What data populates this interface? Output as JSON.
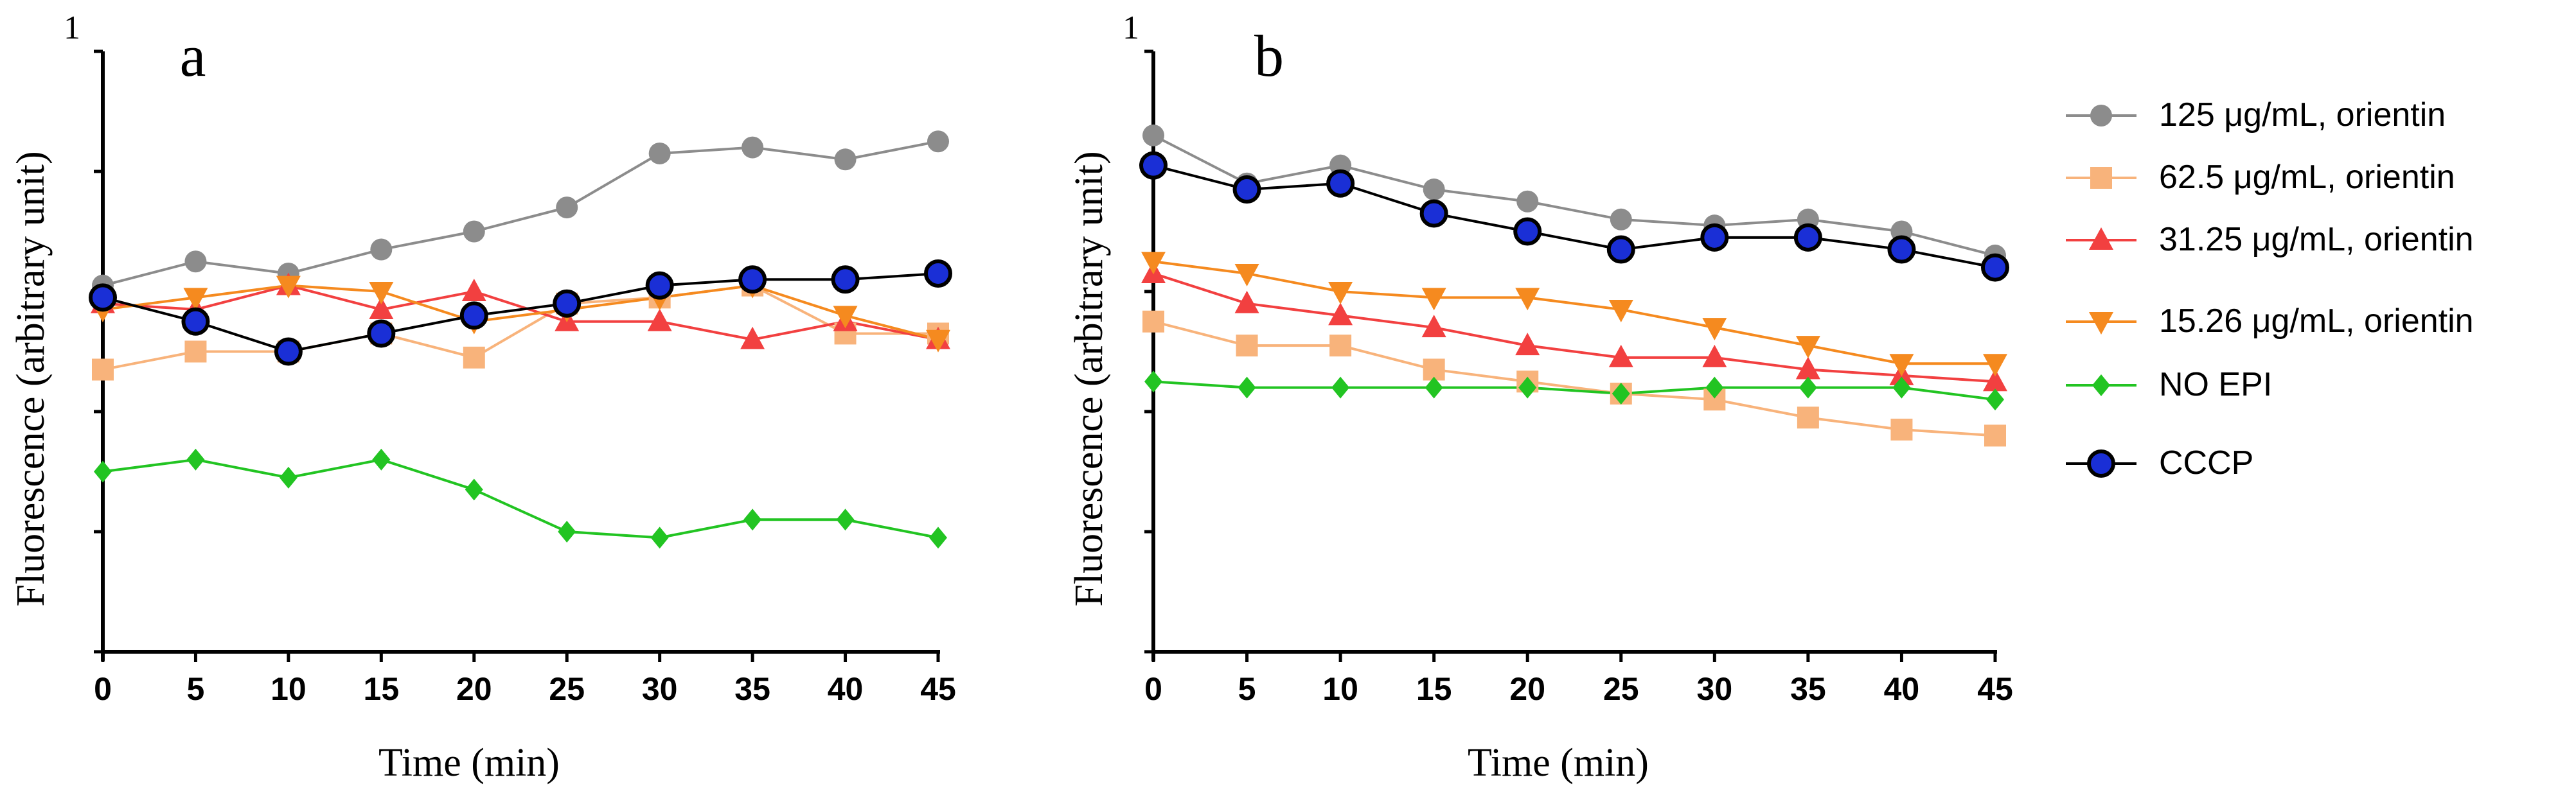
{
  "chart_data": [
    {
      "type": "line",
      "panel_label": "a",
      "xlabel": "Time (min)",
      "ylabel": "Fluorescence (arbitrary unit)",
      "ytop_label": "1",
      "x": [
        0,
        5,
        10,
        15,
        20,
        25,
        30,
        35,
        40,
        45
      ],
      "xlim": [
        0,
        45
      ],
      "ylim": [
        0,
        1
      ],
      "series": [
        {
          "name": "125 μg/mL, orientin",
          "color": "#8c8c8c",
          "marker": "circle",
          "values": [
            0.61,
            0.65,
            0.63,
            0.67,
            0.7,
            0.74,
            0.83,
            0.84,
            0.82,
            0.85
          ]
        },
        {
          "name": "62.5 μg/mL, orientin",
          "color": "#f8b37b",
          "marker": "square",
          "values": [
            0.47,
            0.5,
            0.5,
            0.53,
            0.49,
            0.58,
            0.59,
            0.61,
            0.53,
            0.53
          ]
        },
        {
          "name": "31.25 μg/mL, orientin",
          "color": "#f24040",
          "marker": "triangle-up",
          "values": [
            0.58,
            0.57,
            0.61,
            0.57,
            0.6,
            0.55,
            0.55,
            0.52,
            0.55,
            0.52
          ]
        },
        {
          "name": "15.26 μg/mL, orientin",
          "color": "#f58a1f",
          "marker": "triangle-down",
          "values": [
            0.57,
            0.59,
            0.61,
            0.6,
            0.55,
            0.57,
            0.59,
            0.61,
            0.56,
            0.52
          ]
        },
        {
          "name": "NO EPI",
          "color": "#22c422",
          "marker": "diamond",
          "values": [
            0.3,
            0.32,
            0.29,
            0.32,
            0.27,
            0.2,
            0.19,
            0.22,
            0.22,
            0.19
          ]
        },
        {
          "name": "CCCP",
          "color": "#1a2fd6",
          "marker": "circle-ring",
          "values": [
            0.59,
            0.55,
            0.5,
            0.53,
            0.56,
            0.58,
            0.61,
            0.62,
            0.62,
            0.63
          ]
        }
      ]
    },
    {
      "type": "line",
      "panel_label": "b",
      "xlabel": "Time (min)",
      "ylabel": "Fluorescence (arbitrary unit)",
      "ytop_label": "1",
      "x": [
        0,
        5,
        10,
        15,
        20,
        25,
        30,
        35,
        40,
        45
      ],
      "xlim": [
        0,
        45
      ],
      "ylim": [
        0,
        1
      ],
      "series": [
        {
          "name": "125 μg/mL, orientin",
          "color": "#8c8c8c",
          "marker": "circle",
          "values": [
            0.86,
            0.78,
            0.81,
            0.77,
            0.75,
            0.72,
            0.71,
            0.72,
            0.7,
            0.66
          ]
        },
        {
          "name": "62.5 μg/mL, orientin",
          "color": "#f8b37b",
          "marker": "square",
          "values": [
            0.55,
            0.51,
            0.51,
            0.47,
            0.45,
            0.43,
            0.42,
            0.39,
            0.37,
            0.36
          ]
        },
        {
          "name": "31.25 μg/mL, orientin",
          "color": "#f24040",
          "marker": "triangle-up",
          "values": [
            0.63,
            0.58,
            0.56,
            0.54,
            0.51,
            0.49,
            0.49,
            0.47,
            0.46,
            0.45
          ]
        },
        {
          "name": "15.26 μg/mL, orientin",
          "color": "#f58a1f",
          "marker": "triangle-down",
          "values": [
            0.65,
            0.63,
            0.6,
            0.59,
            0.59,
            0.57,
            0.54,
            0.51,
            0.48,
            0.48
          ]
        },
        {
          "name": "NO EPI",
          "color": "#22c422",
          "marker": "diamond",
          "values": [
            0.45,
            0.44,
            0.44,
            0.44,
            0.44,
            0.43,
            0.44,
            0.44,
            0.44,
            0.42
          ]
        },
        {
          "name": "CCCP",
          "color": "#1a2fd6",
          "marker": "circle-ring",
          "values": [
            0.81,
            0.77,
            0.78,
            0.73,
            0.7,
            0.67,
            0.69,
            0.69,
            0.67,
            0.64
          ]
        }
      ]
    }
  ],
  "legend": {
    "placement": "right",
    "items": [
      {
        "label": "125 μg/mL, orientin",
        "color": "#8c8c8c",
        "marker": "circle"
      },
      {
        "label": "62.5 μg/mL, orientin",
        "color": "#f8b37b",
        "marker": "square"
      },
      {
        "label": "31.25 μg/mL, orientin",
        "color": "#f24040",
        "marker": "triangle-up"
      },
      {
        "label": "15.26 μg/mL, orientin",
        "color": "#f58a1f",
        "marker": "triangle-down"
      },
      {
        "label": "NO EPI",
        "color": "#22c422",
        "marker": "diamond"
      },
      {
        "label": "CCCP",
        "color": "#1a2fd6",
        "marker": "circle-ring"
      }
    ]
  }
}
